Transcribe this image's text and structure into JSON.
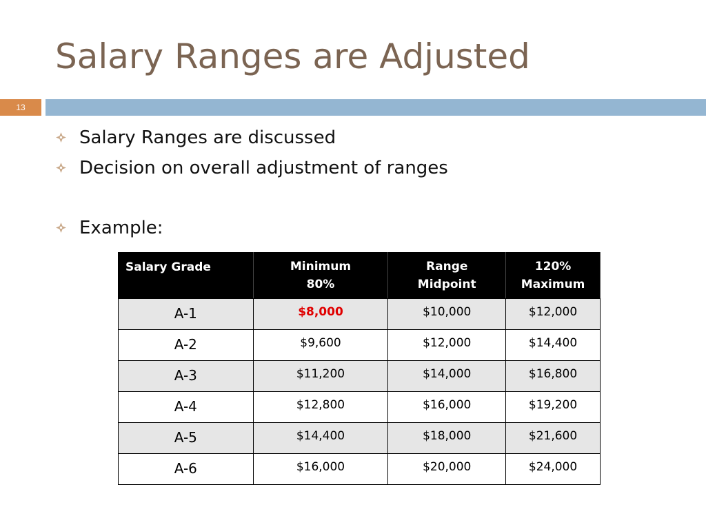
{
  "slide": {
    "title": "Salary Ranges are Adjusted",
    "number": "13"
  },
  "colors": {
    "title": "#7b6452",
    "slide_number_box": "#d98a4a",
    "title_rule": "#94b6d2",
    "bullet_icon": "#c9a98a",
    "table_header_bg": "#000000",
    "table_shaded_row": "#e6e6e6",
    "highlight_value": "#e00000"
  },
  "bullets": [
    {
      "text": "Salary Ranges are discussed",
      "icon": "diamond-bullet-icon"
    },
    {
      "text": "Decision on overall adjustment of ranges",
      "icon": "diamond-bullet-icon"
    },
    {
      "text": "Example:",
      "icon": "diamond-bullet-icon"
    }
  ],
  "table": {
    "headers": [
      [
        "Salary Grade"
      ],
      [
        "Minimum",
        "80%"
      ],
      [
        "Range",
        "Midpoint"
      ],
      [
        "120%",
        "Maximum"
      ]
    ],
    "rows": [
      {
        "grade": "A-1",
        "minimum": "$8,000",
        "midpoint": "$10,000",
        "maximum": "$12,000",
        "minimum_highlighted": true
      },
      {
        "grade": "A-2",
        "minimum": "$9,600",
        "midpoint": "$12,000",
        "maximum": "$14,400"
      },
      {
        "grade": "A-3",
        "minimum": "$11,200",
        "midpoint": "$14,000",
        "maximum": "$16,800"
      },
      {
        "grade": "A-4",
        "minimum": "$12,800",
        "midpoint": "$16,000",
        "maximum": "$19,200"
      },
      {
        "grade": "A-5",
        "minimum": "$14,400",
        "midpoint": "$18,000",
        "maximum": "$21,600"
      },
      {
        "grade": "A-6",
        "minimum": "$16,000",
        "midpoint": "$20,000",
        "maximum": "$24,000"
      }
    ]
  }
}
